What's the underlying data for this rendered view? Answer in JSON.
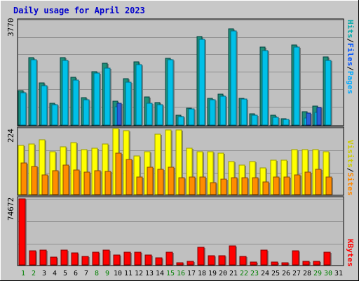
{
  "title": "Daily usage for April 2023",
  "colors": {
    "frame_bg": "#c8c8c8",
    "plot_bg": "#c0c0c0",
    "title": "#0000cc",
    "gridline": "#8f8f8f",
    "hits": "#00d8ff",
    "hits_dark": "#007b95",
    "files": "#00c0e8",
    "files_dark": "#006b82",
    "pages": "#2b5fd8",
    "pages_dark": "#0a2a80",
    "visits": "#ffff00",
    "visits_dark": "#9a9a00",
    "sites": "#ff8c00",
    "sites_dark": "#8a4c00",
    "kbytes": "#ff0000",
    "kbytes_dark": "#800000",
    "weekday": "#008000",
    "weekend": "#008040",
    "axis_black": "#000000"
  },
  "panels": {
    "top": {
      "ymax_label": "3770",
      "legend": [
        {
          "text": "Hits",
          "color": "#00aaaa"
        },
        {
          "text": "/",
          "color": "#000000"
        },
        {
          "text": "Files",
          "color": "#0055ff"
        },
        {
          "text": "/",
          "color": "#000000"
        },
        {
          "text": "Pages",
          "color": "#00aaff"
        }
      ]
    },
    "mid": {
      "ymax_label": "224",
      "legend": [
        {
          "text": "Visits",
          "color": "#cccc00"
        },
        {
          "text": "/",
          "color": "#000000"
        },
        {
          "text": "Sites",
          "color": "#ff8800"
        }
      ]
    },
    "bot": {
      "ymax_label": "74672",
      "legend": [
        {
          "text": "KBytes",
          "color": "#ff0000"
        }
      ]
    }
  },
  "chart_data": {
    "type": "bar",
    "title": "Daily usage for April 2023",
    "categories": [
      "1",
      "2",
      "3",
      "4",
      "5",
      "6",
      "7",
      "8",
      "9",
      "10",
      "11",
      "12",
      "13",
      "14",
      "15",
      "16",
      "17",
      "18",
      "19",
      "20",
      "21",
      "22",
      "23",
      "24",
      "25",
      "26",
      "27",
      "28",
      "29",
      "30",
      "31"
    ],
    "weekend_days": [
      1,
      2,
      8,
      9,
      15,
      16,
      22,
      23,
      29,
      30
    ],
    "series_top": [
      {
        "name": "Hits",
        "values": [
          1230,
          2420,
          1500,
          780,
          2420,
          1720,
          970,
          1910,
          2200,
          850,
          1660,
          2250,
          1000,
          800,
          2400,
          360,
          610,
          3160,
          950,
          1100,
          3450,
          960,
          390,
          2800,
          340,
          230,
          2870,
          470,
          680,
          2440,
          0
        ]
      },
      {
        "name": "Files",
        "values": [
          1150,
          2340,
          1400,
          720,
          2320,
          1620,
          900,
          1870,
          2040,
          650,
          1540,
          2150,
          790,
          730,
          2330,
          310,
          580,
          3070,
          900,
          1040,
          3370,
          920,
          350,
          2670,
          280,
          200,
          2800,
          260,
          460,
          2300,
          0
        ]
      },
      {
        "name": "Pages",
        "values": [
          0,
          0,
          0,
          0,
          0,
          0,
          0,
          0,
          0,
          780,
          0,
          0,
          0,
          0,
          0,
          0,
          0,
          0,
          0,
          0,
          0,
          0,
          0,
          0,
          0,
          0,
          0,
          420,
          640,
          0,
          0
        ]
      }
    ],
    "series_mid": [
      {
        "name": "Visits",
        "values": [
          165,
          170,
          185,
          145,
          160,
          175,
          152,
          155,
          170,
          222,
          215,
          130,
          145,
          203,
          218,
          218,
          155,
          145,
          145,
          140,
          110,
          100,
          110,
          90,
          115,
          115,
          150,
          150,
          150,
          145,
          0
        ]
      },
      {
        "name": "Sites",
        "values": [
          105,
          95,
          65,
          80,
          100,
          82,
          75,
          80,
          77,
          140,
          118,
          60,
          91,
          86,
          91,
          56,
          60,
          60,
          40,
          52,
          56,
          56,
          56,
          42,
          60,
          60,
          65,
          75,
          85,
          60,
          0
        ]
      }
    ],
    "series_bot": [
      {
        "name": "KBytes",
        "values": [
          74672,
          16000,
          17000,
          8500,
          17000,
          13500,
          9500,
          14000,
          16500,
          11000,
          14500,
          14000,
          11000,
          8000,
          14000,
          2500,
          4200,
          20000,
          10000,
          10000,
          21500,
          9500,
          3000,
          17000,
          3000,
          2500,
          15500,
          4000,
          4000,
          14500,
          0
        ]
      }
    ],
    "ylim_top": [
      0,
      3770
    ],
    "ylim_mid": [
      0,
      224
    ],
    "ylim_bot": [
      0,
      74672
    ]
  }
}
